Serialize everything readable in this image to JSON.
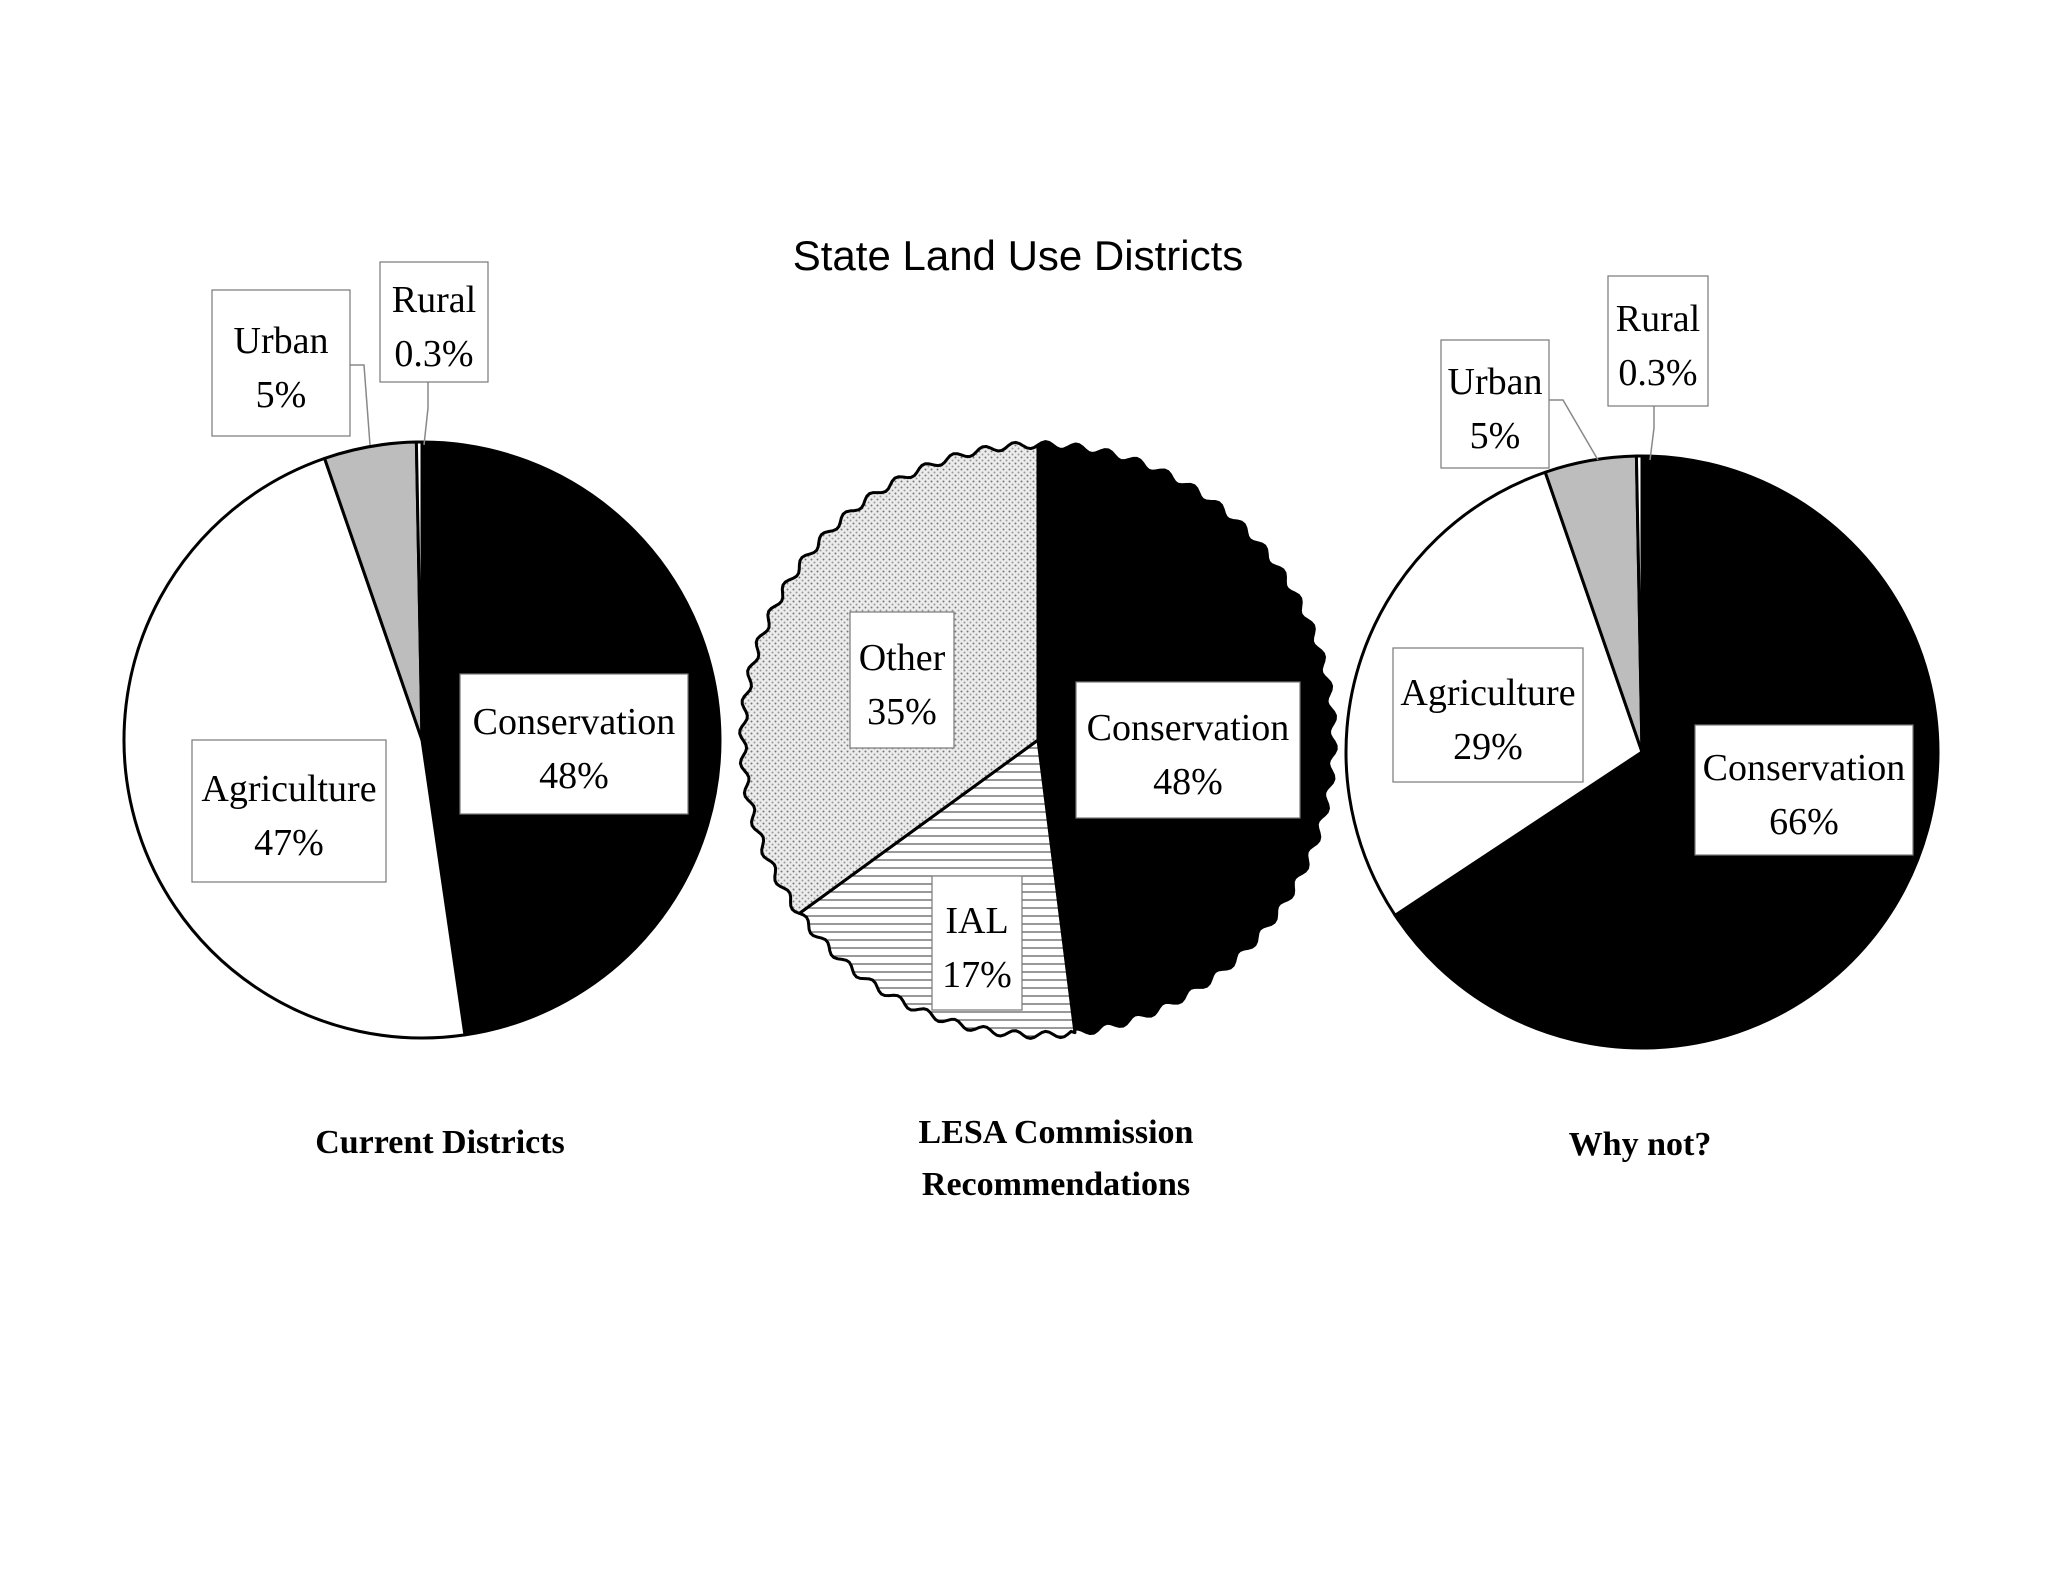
{
  "title": "State Land Use Districts",
  "chart_data": [
    {
      "type": "pie",
      "caption": [
        "Current Districts"
      ],
      "slices": [
        {
          "label": "Conservation",
          "value_text": "48%",
          "value": 47.7,
          "fill": "#000000"
        },
        {
          "label": "Agriculture",
          "value_text": "47%",
          "value": 47.0,
          "fill": "#ffffff"
        },
        {
          "label": "Urban",
          "value_text": "5%",
          "value": 5.0,
          "fill": "#bdbdbd"
        },
        {
          "label": "Rural",
          "value_text": "0.3%",
          "value": 0.3,
          "fill": "#ffffff"
        }
      ]
    },
    {
      "type": "pie",
      "caption": [
        "LESA Commission",
        "Recommendations"
      ],
      "slices": [
        {
          "label": "Conservation",
          "value_text": "48%",
          "value": 48,
          "fill": "#000000"
        },
        {
          "label": "IAL",
          "value_text": "17%",
          "value": 17,
          "fill": "hlines"
        },
        {
          "label": "Other",
          "value_text": "35%",
          "value": 35,
          "fill": "dots"
        }
      ]
    },
    {
      "type": "pie",
      "caption": [
        "Why not?"
      ],
      "slices": [
        {
          "label": "Conservation",
          "value_text": "66%",
          "value": 65.7,
          "fill": "#000000"
        },
        {
          "label": "Agriculture",
          "value_text": "29%",
          "value": 29.0,
          "fill": "#ffffff"
        },
        {
          "label": "Urban",
          "value_text": "5%",
          "value": 5.0,
          "fill": "#bdbdbd"
        },
        {
          "label": "Rural",
          "value_text": "0.3%",
          "value": 0.3,
          "fill": "#ffffff"
        }
      ]
    }
  ]
}
